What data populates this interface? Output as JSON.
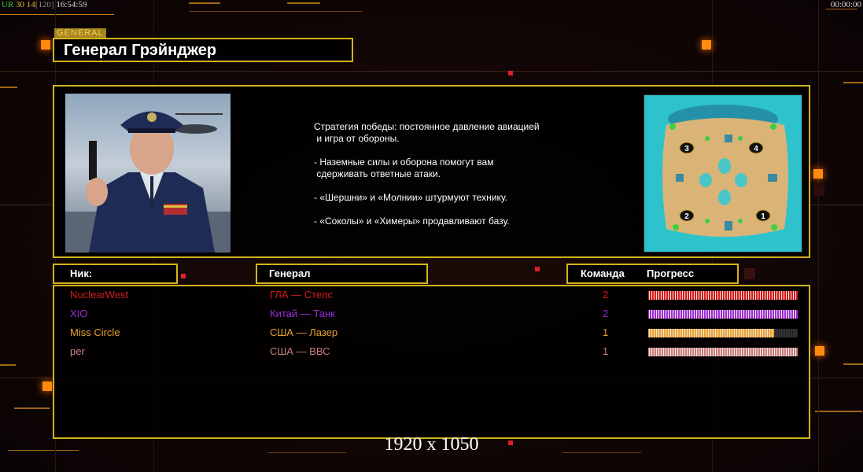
{
  "status": {
    "ur": "UR",
    "fps": "30",
    "n": "14",
    "bracket": "[120]",
    "time": "16:54:59"
  },
  "clock": "00:00:00",
  "general": {
    "tag": "GENERAL",
    "name": "Генерал Грэйнджер"
  },
  "description": "Стратегия победы: постоянное давление авиацией\n и игра от обороны.\n\n- Наземные силы и оборона помогут вам\n сдерживать ответные атаки.\n\n- «Шершни» и «Молнии» штурмуют технику.\n\n- «Соколы» и «Химеры» продавливают базу.",
  "map": {
    "start_positions": [
      "1",
      "2",
      "3",
      "4"
    ]
  },
  "headers": {
    "nick": "Ник:",
    "general": "Генерал",
    "team": "Команда",
    "progress": "Прогресс"
  },
  "players": [
    {
      "nick": "NuclearWest",
      "general": "ГЛА — Стелс",
      "team": "2",
      "progress": 100,
      "color": "#d41c1c"
    },
    {
      "nick": "XIO",
      "general": "Китай — Танк",
      "team": "2",
      "progress": 100,
      "color": "#9a2ed6"
    },
    {
      "nick": "Miss Circle",
      "general": "США — Лазер",
      "team": "1",
      "progress": 84,
      "color": "#e8a232"
    },
    {
      "nick": "per",
      "general": "США — ВВС",
      "team": "1",
      "progress": 100,
      "color": "#c88080"
    }
  ],
  "resolution": "1920 x 1050"
}
